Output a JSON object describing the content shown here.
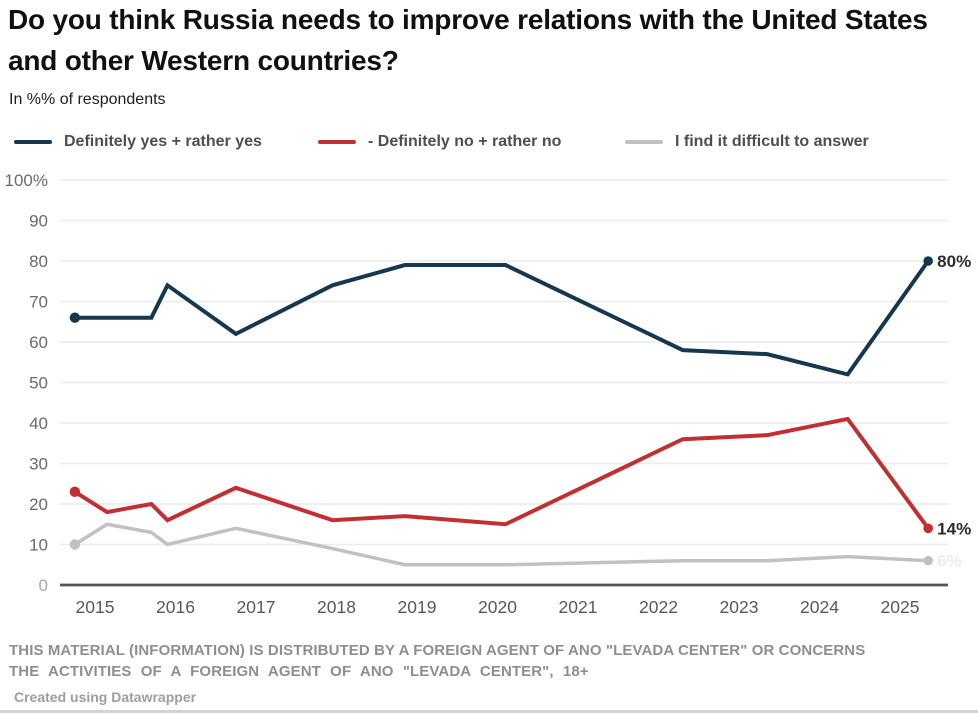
{
  "chart_data": {
    "type": "line",
    "title": "Do you think Russia needs to improve relations with the United States and other Western countries?",
    "subtitle": "In %% of respondents",
    "xlabel": "",
    "ylabel": "",
    "grid": "horizontal",
    "legend_position": "top",
    "xlim": [
      2014.55,
      2025.8
    ],
    "ylim": [
      0,
      100
    ],
    "x": [
      2014.75,
      2015.15,
      2015.7,
      2015.9,
      2016.75,
      2017.95,
      2018.85,
      2020.1,
      2022.3,
      2023.35,
      2024.35,
      2025.35
    ],
    "x_ticks": [
      2015,
      2016,
      2017,
      2018,
      2019,
      2020,
      2021,
      2022,
      2023,
      2024,
      2025
    ],
    "y_ticks": [
      {
        "value": 100,
        "label": "100%"
      },
      {
        "value": 90,
        "label": "90"
      },
      {
        "value": 80,
        "label": "80"
      },
      {
        "value": 70,
        "label": "70"
      },
      {
        "value": 60,
        "label": "60"
      },
      {
        "value": 50,
        "label": "50"
      },
      {
        "value": 40,
        "label": "40"
      },
      {
        "value": 30,
        "label": "30"
      },
      {
        "value": 20,
        "label": "20"
      },
      {
        "value": 10,
        "label": "10"
      },
      {
        "value": 0,
        "label": "0"
      }
    ],
    "series": [
      {
        "name": "Definitely yes + rather yes",
        "slug": "definitely-yes",
        "color": "#15384f",
        "line_width": 4,
        "values": [
          66,
          66,
          66,
          74,
          62,
          74,
          79,
          79,
          58,
          57,
          52,
          80
        ],
        "start_dot": true,
        "end_dot": true,
        "end_label": "80%",
        "end_label_faint": false
      },
      {
        "name": "- Definitely no + rather no",
        "slug": "definitely-no",
        "color": "#c22f33",
        "line_width": 4,
        "values": [
          23,
          18,
          20,
          16,
          24,
          16,
          17,
          15,
          36,
          37,
          41,
          14
        ],
        "start_dot": true,
        "end_dot": true,
        "end_label": "14%",
        "end_label_faint": false
      },
      {
        "name": "I find it difficult to answer",
        "slug": "difficult-to-answer",
        "color": "#c1c1c1",
        "line_width": 3.5,
        "values": [
          10,
          15,
          13,
          10,
          14,
          9,
          5,
          5,
          6,
          6,
          7,
          6
        ],
        "start_dot": true,
        "end_dot": true,
        "end_label": "6%",
        "end_label_faint": true
      }
    ]
  },
  "footer": {
    "disclaimer_line1": "THIS MATERIAL (INFORMATION) IS DISTRIBUTED BY A FOREIGN AGENT OF ANO \"LEVADA CENTER\" OR CONCERNS",
    "disclaimer_line2": "THE ACTIVITIES OF A FOREIGN AGENT OF ANO \"LEVADA CENTER\", 18+",
    "credit": "Created using Datawrapper"
  }
}
